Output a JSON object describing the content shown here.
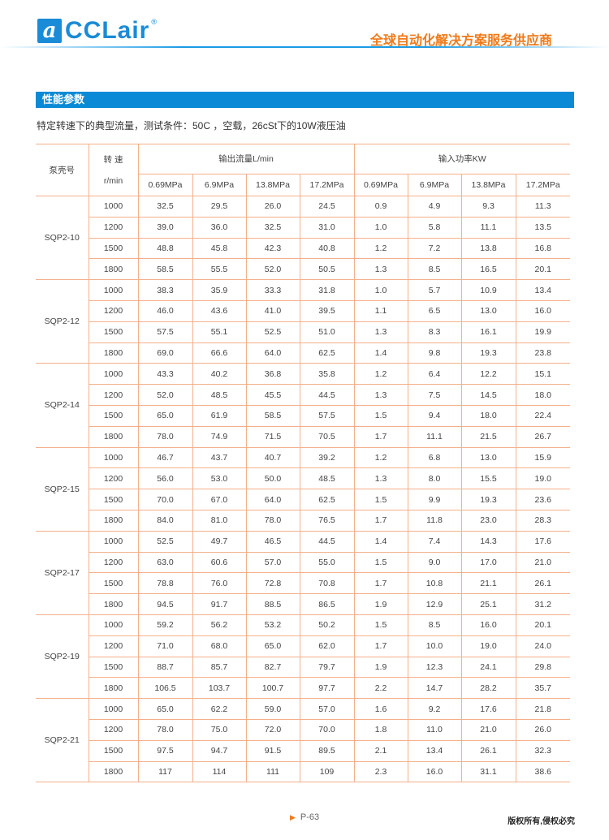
{
  "header": {
    "logo_text": "CCLair",
    "logo_mark": "a",
    "slogan": "全球自动化解决方案服务供应商"
  },
  "section": {
    "title": "性能参数",
    "subtitle": "特定转速下的典型流量，测试条件：50C ，空载，26cSt下的10W液压油"
  },
  "table": {
    "col_pump": "泵壳号",
    "col_speed": "转 速",
    "col_speed_unit": "r/min",
    "group_flow": "输出流量L/min",
    "group_power": "输入功率KW",
    "pressures": [
      "0.69MPa",
      "6.9MPa",
      "13.8MPa",
      "17.2MPa",
      "0.69MPa",
      "6.9MPa",
      "13.8MPa",
      "17.2MPa"
    ],
    "groups": [
      {
        "model": "SQP2-10",
        "rows": [
          [
            "1000",
            "32.5",
            "29.5",
            "26.0",
            "24.5",
            "0.9",
            "4.9",
            "9.3",
            "11.3"
          ],
          [
            "1200",
            "39.0",
            "36.0",
            "32.5",
            "31.0",
            "1.0",
            "5.8",
            "11.1",
            "13.5"
          ],
          [
            "1500",
            "48.8",
            "45.8",
            "42.3",
            "40.8",
            "1.2",
            "7.2",
            "13.8",
            "16.8"
          ],
          [
            "1800",
            "58.5",
            "55.5",
            "52.0",
            "50.5",
            "1.3",
            "8.5",
            "16.5",
            "20.1"
          ]
        ]
      },
      {
        "model": "SQP2-12",
        "rows": [
          [
            "1000",
            "38.3",
            "35.9",
            "33.3",
            "31.8",
            "1.0",
            "5.7",
            "10.9",
            "13.4"
          ],
          [
            "1200",
            "46.0",
            "43.6",
            "41.0",
            "39.5",
            "1.1",
            "6.5",
            "13.0",
            "16.0"
          ],
          [
            "1500",
            "57.5",
            "55.1",
            "52.5",
            "51.0",
            "1.3",
            "8.3",
            "16.1",
            "19.9"
          ],
          [
            "1800",
            "69.0",
            "66.6",
            "64.0",
            "62.5",
            "1.4",
            "9.8",
            "19.3",
            "23.8"
          ]
        ]
      },
      {
        "model": "SQP2-14",
        "rows": [
          [
            "1000",
            "43.3",
            "40.2",
            "36.8",
            "35.8",
            "1.2",
            "6.4",
            "12.2",
            "15.1"
          ],
          [
            "1200",
            "52.0",
            "48.5",
            "45.5",
            "44.5",
            "1.3",
            "7.5",
            "14.5",
            "18.0"
          ],
          [
            "1500",
            "65.0",
            "61.9",
            "58.5",
            "57.5",
            "1.5",
            "9.4",
            "18.0",
            "22.4"
          ],
          [
            "1800",
            "78.0",
            "74.9",
            "71.5",
            "70.5",
            "1.7",
            "11.1",
            "21.5",
            "26.7"
          ]
        ]
      },
      {
        "model": "SQP2-15",
        "rows": [
          [
            "1000",
            "46.7",
            "43.7",
            "40.7",
            "39.2",
            "1.2",
            "6.8",
            "13.0",
            "15.9"
          ],
          [
            "1200",
            "56.0",
            "53.0",
            "50.0",
            "48.5",
            "1.3",
            "8.0",
            "15.5",
            "19.0"
          ],
          [
            "1500",
            "70.0",
            "67.0",
            "64.0",
            "62.5",
            "1.5",
            "9.9",
            "19.3",
            "23.6"
          ],
          [
            "1800",
            "84.0",
            "81.0",
            "78.0",
            "76.5",
            "1.7",
            "11.8",
            "23.0",
            "28.3"
          ]
        ]
      },
      {
        "model": "SQP2-17",
        "rows": [
          [
            "1000",
            "52.5",
            "49.7",
            "46.5",
            "44.5",
            "1.4",
            "7.4",
            "14.3",
            "17.6"
          ],
          [
            "1200",
            "63.0",
            "60.6",
            "57.0",
            "55.0",
            "1.5",
            "9.0",
            "17.0",
            "21.0"
          ],
          [
            "1500",
            "78.8",
            "76.0",
            "72.8",
            "70.8",
            "1.7",
            "10.8",
            "21.1",
            "26.1"
          ],
          [
            "1800",
            "94.5",
            "91.7",
            "88.5",
            "86.5",
            "1.9",
            "12.9",
            "25.1",
            "31.2"
          ]
        ]
      },
      {
        "model": "SQP2-19",
        "rows": [
          [
            "1000",
            "59.2",
            "56.2",
            "53.2",
            "50.2",
            "1.5",
            "8.5",
            "16.0",
            "20.1"
          ],
          [
            "1200",
            "71.0",
            "68.0",
            "65.0",
            "62.0",
            "1.7",
            "10.0",
            "19.0",
            "24.0"
          ],
          [
            "1500",
            "88.7",
            "85.7",
            "82.7",
            "79.7",
            "1.9",
            "12.3",
            "24.1",
            "29.8"
          ],
          [
            "1800",
            "106.5",
            "103.7",
            "100.7",
            "97.7",
            "2.2",
            "14.7",
            "28.2",
            "35.7"
          ]
        ]
      },
      {
        "model": "SQP2-21",
        "rows": [
          [
            "1000",
            "65.0",
            "62.2",
            "59.0",
            "57.0",
            "1.6",
            "9.2",
            "17.6",
            "21.8"
          ],
          [
            "1200",
            "78.0",
            "75.0",
            "72.0",
            "70.0",
            "1.8",
            "11.0",
            "21.0",
            "26.0"
          ],
          [
            "1500",
            "97.5",
            "94.7",
            "91.5",
            "89.5",
            "2.1",
            "13.4",
            "26.1",
            "32.3"
          ],
          [
            "1800",
            "117",
            "114",
            "111",
            "109",
            "2.3",
            "16.0",
            "31.1",
            "38.6"
          ]
        ]
      }
    ]
  },
  "footer": {
    "page": "P-63",
    "copyright": "版权所有,侵权必究"
  }
}
